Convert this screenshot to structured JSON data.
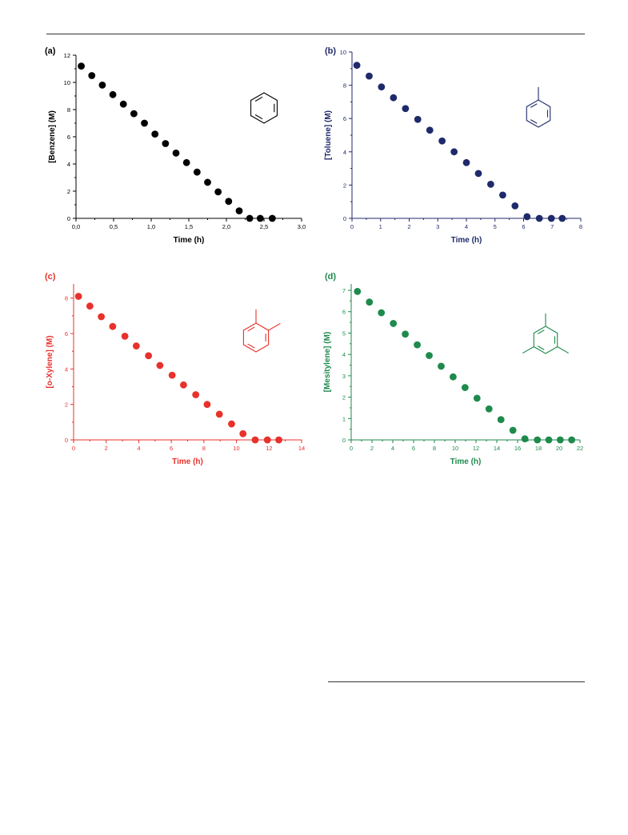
{
  "figure": {
    "panels": [
      {
        "letter": "(a)",
        "color": "#000000",
        "molecule": "benzene"
      },
      {
        "letter": "(b)",
        "color": "#1f2a6b",
        "molecule": "toluene"
      },
      {
        "letter": "(c)",
        "color": "#e8312b",
        "molecule": "o-xylene"
      },
      {
        "letter": "(d)",
        "color": "#1e8a4c",
        "molecule": "mesitylene"
      }
    ]
  },
  "chart_data": [
    {
      "type": "scatter",
      "panel_label": "(a)",
      "xlabel": "Time (h)",
      "ylabel": "[Benzene] (M)",
      "xlim": [
        0.0,
        3.0
      ],
      "ylim": [
        0,
        12
      ],
      "xticks": [
        "0,0",
        "0,5",
        "1,0",
        "1,5",
        "2,0",
        "2,5",
        "3,0"
      ],
      "xtick_values": [
        0.0,
        0.5,
        1.0,
        1.5,
        2.0,
        2.5,
        3.0
      ],
      "yticks": [
        "0",
        "2",
        "4",
        "6",
        "8",
        "10",
        "12"
      ],
      "ytick_values": [
        0,
        2,
        4,
        6,
        8,
        10,
        12
      ],
      "color": "#000000",
      "x": [
        0.07,
        0.21,
        0.35,
        0.49,
        0.63,
        0.77,
        0.91,
        1.05,
        1.19,
        1.33,
        1.47,
        1.61,
        1.75,
        1.89,
        2.03,
        2.17,
        2.31,
        2.45,
        2.61
      ],
      "y": [
        11.2,
        10.5,
        9.8,
        9.1,
        8.4,
        7.7,
        7.0,
        6.2,
        5.5,
        4.8,
        4.1,
        3.4,
        2.65,
        1.95,
        1.25,
        0.55,
        0.0,
        0.0,
        0.0
      ]
    },
    {
      "type": "scatter",
      "panel_label": "(b)",
      "xlabel": "Time (h)",
      "ylabel": "[Toluene] (M)",
      "xlim": [
        0,
        8
      ],
      "ylim": [
        0,
        10
      ],
      "xticks": [
        "0",
        "1",
        "2",
        "3",
        "4",
        "5",
        "6",
        "7",
        "8"
      ],
      "xtick_values": [
        0,
        1,
        2,
        3,
        4,
        5,
        6,
        7,
        8
      ],
      "yticks": [
        "0",
        "2",
        "4",
        "6",
        "8",
        "10"
      ],
      "ytick_values": [
        0,
        2,
        4,
        6,
        8,
        10
      ],
      "color": "#1f2a6b",
      "x": [
        0.17,
        0.6,
        1.03,
        1.45,
        1.87,
        2.3,
        2.72,
        3.15,
        3.57,
        4.0,
        4.42,
        4.85,
        5.27,
        5.7,
        6.12,
        6.55,
        6.97,
        7.35
      ],
      "y": [
        9.2,
        8.55,
        7.9,
        7.25,
        6.6,
        5.95,
        5.3,
        4.65,
        4.0,
        3.35,
        2.7,
        2.05,
        1.4,
        0.75,
        0.1,
        0.0,
        0.0,
        0.0
      ]
    },
    {
      "type": "scatter",
      "panel_label": "(c)",
      "xlabel": "Time (h)",
      "ylabel": "[o-Xylene] (M)",
      "xlim": [
        0,
        14
      ],
      "ylim": [
        0,
        8.8
      ],
      "xticks": [
        "0",
        "2",
        "4",
        "6",
        "8",
        "10",
        "12",
        "14"
      ],
      "xtick_values": [
        0,
        2,
        4,
        6,
        8,
        10,
        12,
        14
      ],
      "yticks": [
        "0",
        "2",
        "4",
        "6",
        "8"
      ],
      "ytick_values": [
        0,
        2,
        4,
        6,
        8
      ],
      "color": "#e8312b",
      "x": [
        0.3,
        1.0,
        1.7,
        2.4,
        3.15,
        3.85,
        4.6,
        5.3,
        6.05,
        6.75,
        7.5,
        8.2,
        8.95,
        9.7,
        10.4,
        11.15,
        11.9,
        12.6
      ],
      "y": [
        8.1,
        7.55,
        6.95,
        6.4,
        5.85,
        5.3,
        4.75,
        4.2,
        3.65,
        3.1,
        2.55,
        2.0,
        1.45,
        0.9,
        0.35,
        0.0,
        0.0,
        0.0
      ]
    },
    {
      "type": "scatter",
      "panel_label": "(d)",
      "xlabel": "Time (h)",
      "ylabel": "[Mesitylene] (M)",
      "xlim": [
        0,
        22
      ],
      "ylim": [
        0,
        7.3
      ],
      "xticks": [
        "0",
        "2",
        "4",
        "6",
        "8",
        "10",
        "12",
        "14",
        "16",
        "18",
        "20",
        "22"
      ],
      "xtick_values": [
        0,
        2,
        4,
        6,
        8,
        10,
        12,
        14,
        16,
        18,
        20,
        22
      ],
      "yticks": [
        "0",
        "1",
        "2",
        "3",
        "4",
        "5",
        "6",
        "7"
      ],
      "ytick_values": [
        0,
        1,
        2,
        3,
        4,
        5,
        6,
        7
      ],
      "color": "#1e8a4c",
      "x": [
        0.6,
        1.75,
        2.9,
        4.05,
        5.2,
        6.35,
        7.5,
        8.65,
        9.8,
        10.95,
        12.1,
        13.25,
        14.4,
        15.55,
        16.7,
        17.9,
        19.0,
        20.1,
        21.2
      ],
      "y": [
        6.95,
        6.45,
        5.95,
        5.45,
        4.95,
        4.45,
        3.95,
        3.45,
        2.95,
        2.45,
        1.95,
        1.45,
        0.95,
        0.45,
        0.05,
        0.0,
        0.0,
        0.0,
        0.0
      ]
    }
  ]
}
